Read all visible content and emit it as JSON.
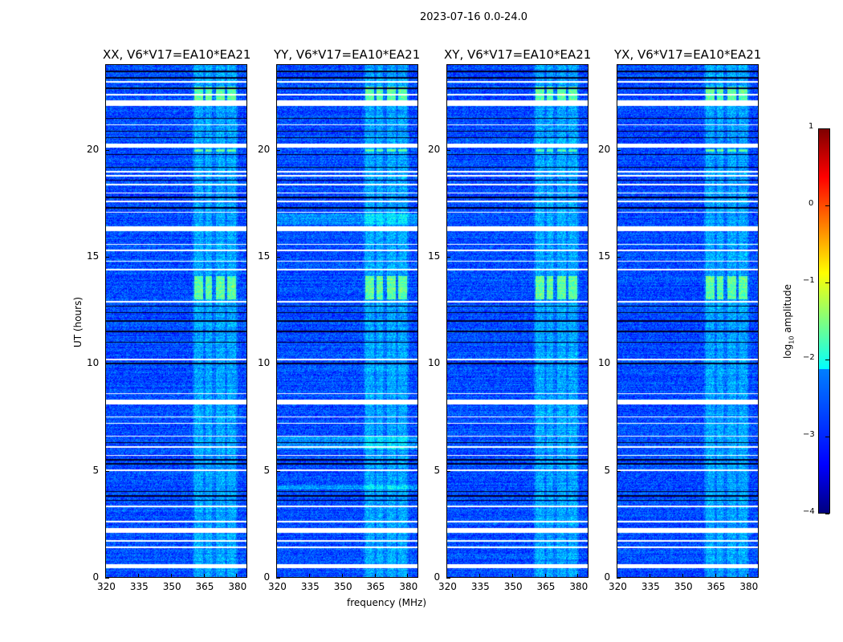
{
  "chart_data": {
    "type": "heatmap",
    "title": "2023-07-16 0.0-24.0",
    "xlabel": "frequency (MHz)",
    "ylabel": "UT (hours)",
    "xlim": [
      320,
      385
    ],
    "ylim": [
      0,
      24
    ],
    "xticks": [
      "320",
      "335",
      "350",
      "365",
      "380"
    ],
    "yticks": [
      "0",
      "5",
      "10",
      "15",
      "20"
    ],
    "panels": [
      {
        "title": "XX, V6*V17=EA10*EA21"
      },
      {
        "title": "YY, V6*V17=EA10*EA21"
      },
      {
        "title": "XY, V6*V17=EA10*EA21"
      },
      {
        "title": "YX, V6*V17=EA10*EA21"
      }
    ],
    "colorbar": {
      "label_prefix": "log",
      "label_sub": "10",
      "label_suffix": " amplitude",
      "range": [
        -4,
        1
      ],
      "ticks": [
        "1",
        "0",
        "−1",
        "−2",
        "−3",
        "−4"
      ],
      "colormap": "jet"
    },
    "background_level": -3.0,
    "rfi_bands_mhz": [
      [
        361,
        365
      ],
      [
        366,
        369
      ],
      [
        371,
        375
      ],
      [
        376,
        380
      ]
    ],
    "rfi_bright_ut": [
      [
        13.0,
        14.1
      ],
      [
        22.3,
        23.0
      ],
      [
        19.95,
        20.05
      ]
    ],
    "flagged_ut": [
      [
        0.42,
        0.6
      ],
      [
        2.08,
        2.3
      ],
      [
        8.1,
        8.3
      ],
      [
        16.2,
        16.45
      ],
      [
        20.12,
        20.3
      ],
      [
        22.1,
        22.35
      ]
    ],
    "thin_flag_ut": [
      1.4,
      1.7,
      2.6,
      3.3,
      5.0,
      5.7,
      6.1,
      6.6,
      7.2,
      7.5,
      8.6,
      10.2,
      12.9,
      14.4,
      14.8,
      15.3,
      15.6,
      17.1,
      17.6,
      18.0,
      18.4,
      18.8,
      19.0,
      21.2,
      22.6,
      23.2
    ],
    "low_ut": [
      3.6,
      3.8,
      4.0,
      5.3,
      5.5,
      6.3,
      10.0,
      11.0,
      11.5,
      12.0,
      12.4,
      12.7,
      17.3,
      17.8,
      18.6,
      19.2,
      19.8,
      20.6,
      20.9,
      21.5,
      22.9,
      23.4,
      23.7
    ]
  }
}
